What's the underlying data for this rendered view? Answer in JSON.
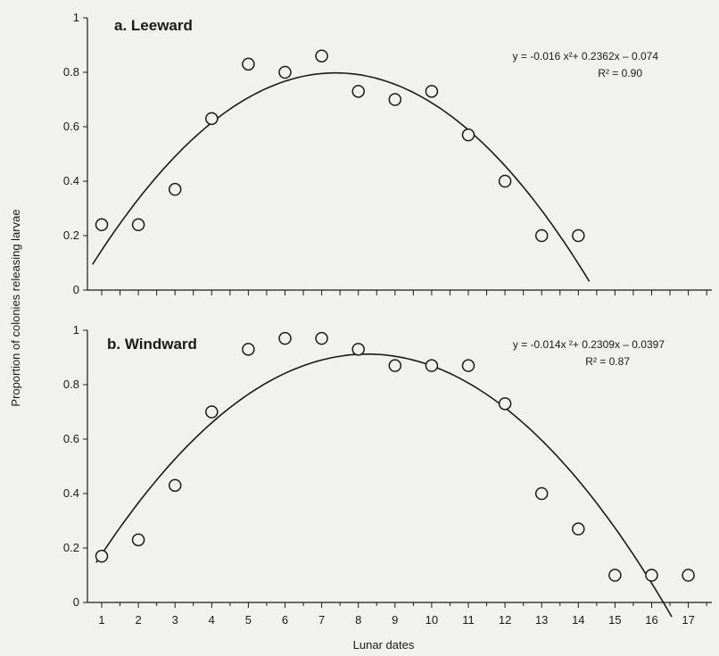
{
  "chart_data": [
    {
      "type": "scatter",
      "title": "a. Leeward",
      "equation": "y = -0.016 x²+ 0.2362x – 0.074",
      "r2": "R² = 0.90",
      "xlabel": "Lunar dates",
      "ylabel": "Proportion of colonies releasing larvae",
      "ylim": [
        0,
        1
      ],
      "yticks": [
        "0",
        "0.2",
        "0.4",
        "0.6",
        "0.8",
        "1"
      ],
      "x": [
        1,
        2,
        3,
        4,
        5,
        6,
        7,
        8,
        9,
        10,
        11,
        12,
        13,
        14
      ],
      "y": [
        0.24,
        0.24,
        0.37,
        0.63,
        0.83,
        0.8,
        0.86,
        0.73,
        0.7,
        0.73,
        0.57,
        0.4,
        0.2,
        0.2
      ],
      "fit": {
        "a": -0.016,
        "b": 0.2362,
        "c": -0.074
      },
      "color": "#1a1a1a"
    },
    {
      "type": "scatter",
      "title": "b. Windward",
      "equation": "y = -0.014x ²+ 0.2309x – 0.0397",
      "r2": "R² = 0.87",
      "xlabel": "Lunar dates",
      "ylabel": "Proportion of colonies releasing larvae",
      "ylim": [
        0,
        1
      ],
      "yticks": [
        "0",
        "0.2",
        "0.4",
        "0.6",
        "0.8",
        "1"
      ],
      "xticks": [
        "1",
        "2",
        "3",
        "4",
        "5",
        "6",
        "7",
        "8",
        "9",
        "10",
        "11",
        "12",
        "13",
        "14",
        "15",
        "16",
        "17"
      ],
      "x": [
        1,
        2,
        3,
        4,
        5,
        6,
        7,
        8,
        9,
        10,
        11,
        12,
        13,
        14,
        15,
        16,
        17
      ],
      "y": [
        0.17,
        0.23,
        0.43,
        0.7,
        0.93,
        0.97,
        0.97,
        0.93,
        0.87,
        0.87,
        0.87,
        0.73,
        0.4,
        0.27,
        0.1,
        0.1,
        0.1
      ],
      "fit": {
        "a": -0.014,
        "b": 0.2309,
        "c": -0.0397
      },
      "color": "#1a1a1a"
    }
  ],
  "shared_ylabel": "Proportion of colonies releasing larvae",
  "shared_xlabel": "Lunar dates"
}
